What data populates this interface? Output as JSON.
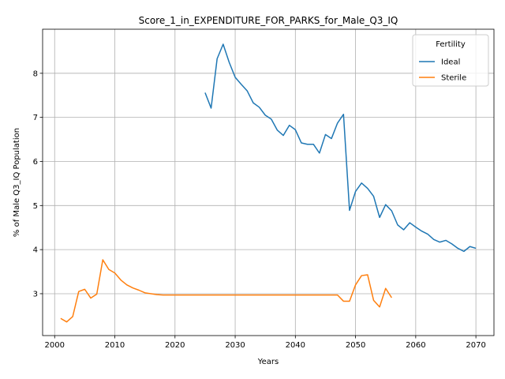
{
  "chart_data": {
    "type": "line",
    "title": "Score_1_in_EXPENDITURE_FOR_PARKS_for_Male_Q3_IQ",
    "xlabel": "Years",
    "ylabel": "% of Male Q3_IQ Population",
    "xlim": [
      1998,
      2073
    ],
    "ylim": [
      2.05,
      9.0
    ],
    "xticks": [
      2000,
      2010,
      2020,
      2030,
      2040,
      2050,
      2060,
      2070
    ],
    "yticks": [
      3,
      4,
      5,
      6,
      7,
      8
    ],
    "grid": true,
    "legend": {
      "title": "Fertility",
      "position": "top-right"
    },
    "series": [
      {
        "name": "Ideal",
        "color": "#1f77b4",
        "x": [
          2025,
          2026,
          2027,
          2028,
          2029,
          2030,
          2031,
          2032,
          2033,
          2034,
          2035,
          2036,
          2037,
          2038,
          2039,
          2040,
          2041,
          2042,
          2043,
          2044,
          2045,
          2046,
          2047,
          2048,
          2049,
          2050,
          2051,
          2052,
          2053,
          2054,
          2055,
          2056,
          2057,
          2058,
          2059,
          2060,
          2061,
          2062,
          2063,
          2064,
          2065,
          2066,
          2067,
          2068,
          2069,
          2070
        ],
        "y": [
          7.56,
          7.21,
          8.33,
          8.66,
          8.25,
          7.91,
          7.75,
          7.6,
          7.33,
          7.23,
          7.05,
          6.96,
          6.71,
          6.59,
          6.82,
          6.72,
          6.42,
          6.39,
          6.39,
          6.19,
          6.61,
          6.52,
          6.87,
          7.07,
          4.89,
          5.32,
          5.51,
          5.39,
          5.21,
          4.73,
          5.02,
          4.88,
          4.56,
          4.45,
          4.61,
          4.51,
          4.42,
          4.35,
          4.23,
          4.17,
          4.21,
          4.13,
          4.03,
          3.96,
          4.07,
          4.03
        ]
      },
      {
        "name": "Sterile",
        "color": "#ff7f0e",
        "x": [
          2001,
          2002,
          2003,
          2004,
          2005,
          2006,
          2007,
          2008,
          2009,
          2010,
          2011,
          2012,
          2013,
          2014,
          2015,
          2016,
          2017,
          2018,
          2019,
          2020,
          2021,
          2022,
          2023,
          2024,
          2025,
          2026,
          2027,
          2028,
          2029,
          2030,
          2031,
          2032,
          2033,
          2034,
          2035,
          2036,
          2037,
          2038,
          2039,
          2040,
          2041,
          2042,
          2043,
          2044,
          2045,
          2046,
          2047,
          2048,
          2049,
          2050,
          2051,
          2052,
          2053,
          2054,
          2055,
          2056
        ],
        "y": [
          2.44,
          2.36,
          2.48,
          3.05,
          3.1,
          2.9,
          2.99,
          3.77,
          3.55,
          3.47,
          3.31,
          3.2,
          3.13,
          3.08,
          3.02,
          3.0,
          2.98,
          2.97,
          2.97,
          2.97,
          2.97,
          2.97,
          2.97,
          2.97,
          2.97,
          2.97,
          2.97,
          2.97,
          2.97,
          2.97,
          2.97,
          2.97,
          2.97,
          2.97,
          2.97,
          2.97,
          2.97,
          2.97,
          2.97,
          2.97,
          2.97,
          2.97,
          2.97,
          2.97,
          2.97,
          2.97,
          2.97,
          2.83,
          2.83,
          3.2,
          3.41,
          3.43,
          2.85,
          2.7,
          3.12,
          2.91
        ]
      }
    ]
  }
}
